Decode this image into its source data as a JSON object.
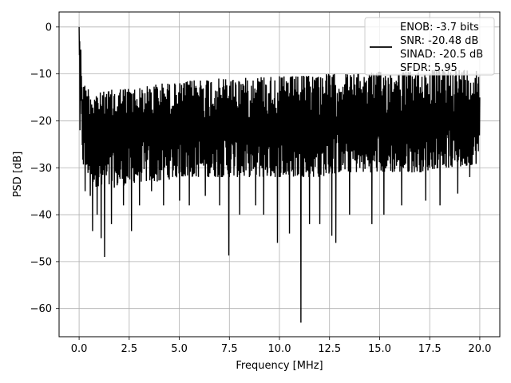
{
  "chart_data": {
    "type": "line",
    "title": "",
    "xlabel": "Frequency [MHz]",
    "ylabel": "PSD [dB]",
    "xlim": [
      -1.0,
      21.0
    ],
    "ylim": [
      -66.0,
      3.2
    ],
    "xticks": [
      0.0,
      2.5,
      5.0,
      7.5,
      10.0,
      12.5,
      15.0,
      17.5,
      20.0
    ],
    "xtick_labels": [
      "0.0",
      "2.5",
      "5.0",
      "7.5",
      "10.0",
      "12.5",
      "15.0",
      "17.5",
      "20.0"
    ],
    "yticks": [
      0,
      -10,
      -20,
      -30,
      -40,
      -50,
      -60
    ],
    "ytick_labels": [
      "0",
      "−10",
      "−20",
      "−30",
      "−40",
      "−50",
      "−60"
    ],
    "grid": true,
    "legend_position": "top-right",
    "legend_entries": [
      "ENOB: -3.7 bits",
      "SNR: -20.48 dB",
      "SINAD: -20.5 dB",
      "SFDR: 5.95"
    ],
    "series": [
      {
        "color": "#000000",
        "x_start": 0.0,
        "x_end": 20.0,
        "envelope_top": [
          [
            0.0,
            0.0
          ],
          [
            0.05,
            -3
          ],
          [
            0.1,
            -5
          ],
          [
            0.2,
            -12
          ],
          [
            0.5,
            -13
          ],
          [
            1.0,
            -14
          ],
          [
            2.0,
            -13
          ],
          [
            3.0,
            -13
          ],
          [
            4.0,
            -12
          ],
          [
            5.0,
            -12
          ],
          [
            6.0,
            -11
          ],
          [
            7.0,
            -11
          ],
          [
            8.0,
            -11
          ],
          [
            9.0,
            -10.5
          ],
          [
            10.0,
            -10.5
          ],
          [
            11.0,
            -10.5
          ],
          [
            12.0,
            -10
          ],
          [
            13.0,
            -10
          ],
          [
            14.0,
            -10
          ],
          [
            15.0,
            -9.5
          ],
          [
            16.0,
            -9.5
          ],
          [
            17.0,
            -9.5
          ],
          [
            18.0,
            -9
          ],
          [
            19.0,
            -9
          ],
          [
            20.0,
            -9
          ]
        ],
        "envelope_bottom": [
          [
            0.0,
            -6
          ],
          [
            0.1,
            -22
          ],
          [
            0.2,
            -30
          ],
          [
            0.5,
            -32
          ],
          [
            1.0,
            -35
          ],
          [
            2.0,
            -34
          ],
          [
            3.0,
            -33
          ],
          [
            4.0,
            -33
          ],
          [
            5.0,
            -32
          ],
          [
            6.0,
            -32
          ],
          [
            7.0,
            -32
          ],
          [
            8.0,
            -32
          ],
          [
            9.0,
            -32
          ],
          [
            10.0,
            -32
          ],
          [
            11.0,
            -32
          ],
          [
            12.0,
            -32
          ],
          [
            13.0,
            -31
          ],
          [
            14.0,
            -31
          ],
          [
            15.0,
            -31
          ],
          [
            16.0,
            -31
          ],
          [
            17.0,
            -31
          ],
          [
            18.0,
            -30
          ],
          [
            19.0,
            -30
          ],
          [
            20.0,
            -29
          ]
        ],
        "dips": [
          [
            0.3,
            -35
          ],
          [
            0.55,
            -36
          ],
          [
            0.65,
            -43.5
          ],
          [
            0.9,
            -40
          ],
          [
            1.1,
            -45
          ],
          [
            1.25,
            -49
          ],
          [
            1.6,
            -42
          ],
          [
            2.2,
            -38
          ],
          [
            2.6,
            -43.5
          ],
          [
            3.0,
            -38
          ],
          [
            3.6,
            -35
          ],
          [
            4.2,
            -38
          ],
          [
            5.0,
            -37
          ],
          [
            5.5,
            -38
          ],
          [
            6.3,
            -36
          ],
          [
            7.0,
            -38
          ],
          [
            7.45,
            -48.7
          ],
          [
            8.0,
            -40
          ],
          [
            8.8,
            -38
          ],
          [
            9.2,
            -40
          ],
          [
            9.9,
            -46
          ],
          [
            10.5,
            -44
          ],
          [
            11.05,
            -63
          ],
          [
            11.5,
            -42
          ],
          [
            12.0,
            -42
          ],
          [
            12.6,
            -44.5
          ],
          [
            12.8,
            -46
          ],
          [
            13.5,
            -40
          ],
          [
            14.6,
            -42
          ],
          [
            15.2,
            -40
          ],
          [
            16.1,
            -38
          ],
          [
            17.3,
            -37
          ],
          [
            18.0,
            -38
          ],
          [
            18.9,
            -35.5
          ],
          [
            19.5,
            -32
          ]
        ]
      }
    ]
  }
}
